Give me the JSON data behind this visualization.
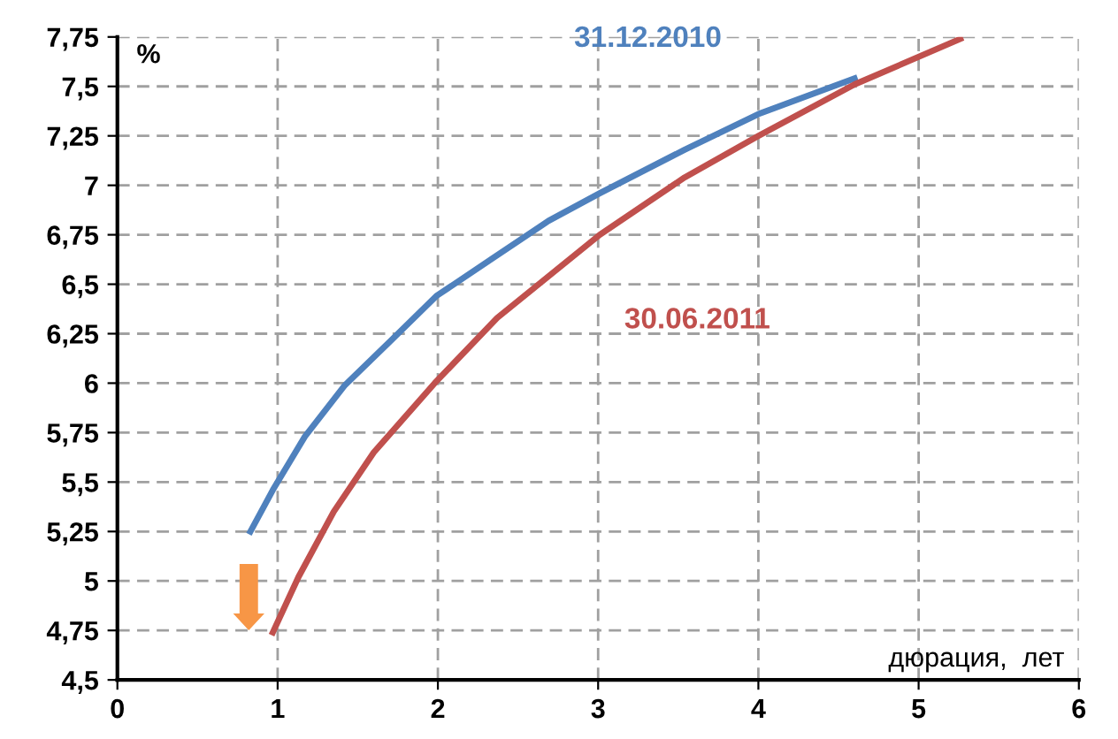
{
  "chart_data": {
    "type": "line",
    "xlabel": "дюрация,  лет",
    "ylabel": "%",
    "xlim": [
      0,
      6
    ],
    "xticks": [
      0,
      1,
      2,
      3,
      4,
      5,
      6
    ],
    "ylim": [
      4.5,
      7.75
    ],
    "yticks": [
      {
        "value": 4.5,
        "label": "4,5"
      },
      {
        "value": 4.75,
        "label": "4,75"
      },
      {
        "value": 5,
        "label": "5"
      },
      {
        "value": 5.25,
        "label": "5,25"
      },
      {
        "value": 5.5,
        "label": "5,5"
      },
      {
        "value": 5.75,
        "label": "5,75"
      },
      {
        "value": 6,
        "label": "6"
      },
      {
        "value": 6.25,
        "label": "6,25"
      },
      {
        "value": 6.5,
        "label": "6,5"
      },
      {
        "value": 6.75,
        "label": "6,75"
      },
      {
        "value": 7,
        "label": "7"
      },
      {
        "value": 7.25,
        "label": "7,25"
      },
      {
        "value": 7.5,
        "label": "7,5"
      },
      {
        "value": 7.75,
        "label": "7,75"
      }
    ],
    "grid": true,
    "line_style": "solid",
    "marker": "none",
    "series": [
      {
        "name": "31.12.2010",
        "color": "#4f81bd",
        "x": [
          0.83,
          0.97,
          1.17,
          1.42,
          1.7,
          1.99,
          2.34,
          2.69,
          3.01,
          3.54,
          4.0,
          4.6
        ],
        "values": [
          5.25,
          5.46,
          5.73,
          5.99,
          6.21,
          6.44,
          6.63,
          6.82,
          6.96,
          7.18,
          7.36,
          7.54
        ]
      },
      {
        "name": "30.06.2011",
        "color": "#c0504d",
        "x": [
          0.97,
          1.13,
          1.35,
          1.6,
          1.98,
          2.37,
          2.69,
          3.01,
          3.54,
          4.0,
          4.6,
          5.26
        ],
        "values": [
          4.74,
          5.02,
          5.35,
          5.65,
          6.0,
          6.33,
          6.54,
          6.75,
          7.04,
          7.25,
          7.51,
          7.74
        ]
      }
    ]
  }
}
